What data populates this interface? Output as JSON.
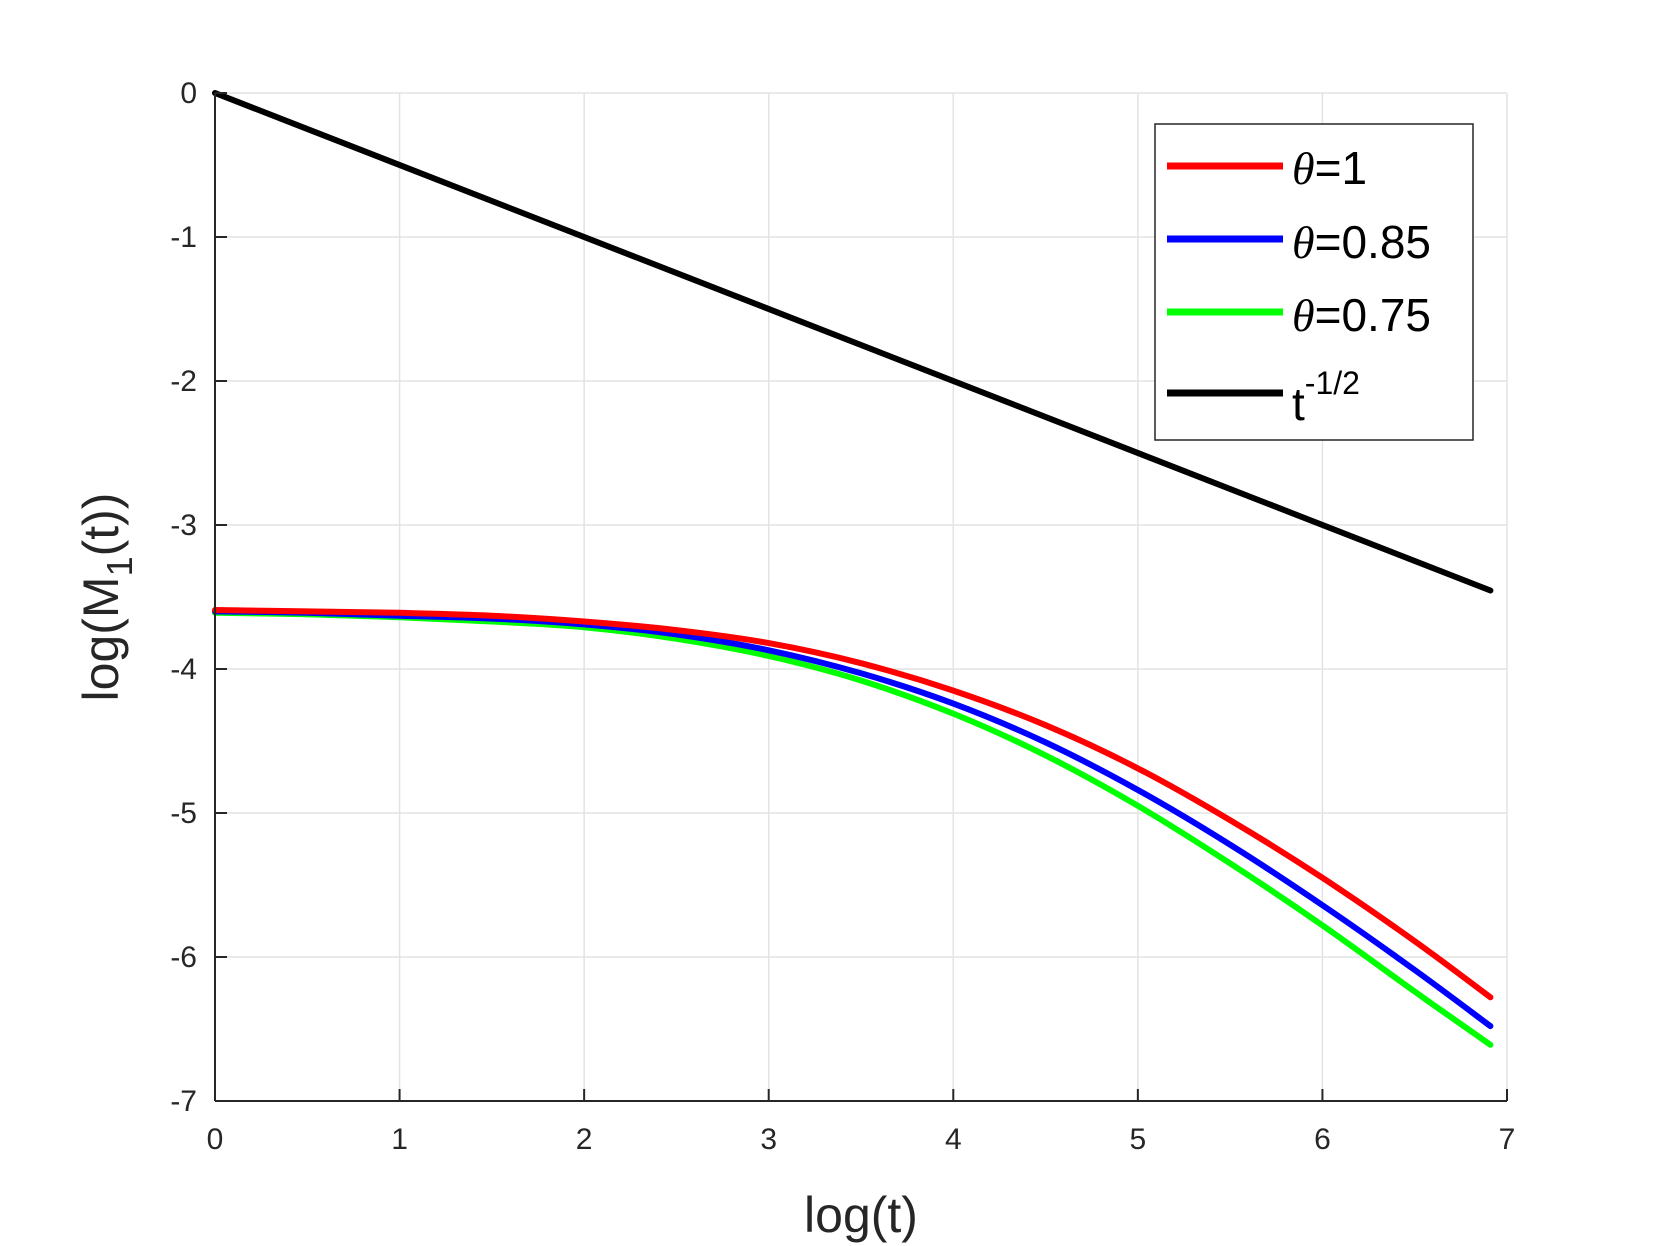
{
  "chart_data": {
    "type": "line",
    "xlabel": "log(t)",
    "ylabel": {
      "base": "log(M",
      "subscript": "1",
      "rest": "(t))"
    },
    "xlim": [
      0,
      7
    ],
    "ylim": [
      -7,
      0
    ],
    "xticks": [
      "0",
      "1",
      "2",
      "3",
      "4",
      "5",
      "6",
      "7"
    ],
    "yticks": [
      "0",
      "-1",
      "-2",
      "-3",
      "-4",
      "-5",
      "-6",
      "-7"
    ],
    "grid": true,
    "legend_position": "top-right",
    "series": [
      {
        "name": "θ=1",
        "name_symbol": "θ",
        "name_rest": "=1",
        "color": "#ff0000",
        "x": [
          0,
          0.5,
          1,
          1.5,
          2,
          2.5,
          3,
          3.5,
          4,
          4.5,
          5,
          5.5,
          6,
          6.5,
          6.91
        ],
        "y": [
          -3.59,
          -3.6,
          -3.61,
          -3.63,
          -3.67,
          -3.73,
          -3.82,
          -3.96,
          -4.15,
          -4.39,
          -4.69,
          -5.05,
          -5.45,
          -5.89,
          -6.28
        ]
      },
      {
        "name": "θ=0.85",
        "name_symbol": "θ",
        "name_rest": "=0.85",
        "color": "#0000ff",
        "x": [
          0,
          0.5,
          1,
          1.5,
          2,
          2.5,
          3,
          3.5,
          4,
          4.5,
          5,
          5.5,
          6,
          6.5,
          6.91
        ],
        "y": [
          -3.6,
          -3.61,
          -3.63,
          -3.65,
          -3.69,
          -3.76,
          -3.87,
          -4.03,
          -4.24,
          -4.51,
          -4.84,
          -5.22,
          -5.64,
          -6.09,
          -6.48
        ]
      },
      {
        "name": "θ=0.75",
        "name_symbol": "θ",
        "name_rest": "=0.75",
        "color": "#00ff00",
        "x": [
          0,
          0.5,
          1,
          1.5,
          2,
          2.5,
          3,
          3.5,
          4,
          4.5,
          5,
          5.5,
          6,
          6.5,
          6.91
        ],
        "y": [
          -3.61,
          -3.62,
          -3.64,
          -3.67,
          -3.71,
          -3.79,
          -3.91,
          -4.08,
          -4.31,
          -4.6,
          -4.95,
          -5.35,
          -5.78,
          -6.24,
          -6.61
        ]
      },
      {
        "name": "t-1/2",
        "name_base": "t",
        "name_sup": "-1/2",
        "color": "#000000",
        "x": [
          0,
          6.91
        ],
        "y": [
          0,
          -3.455
        ]
      }
    ]
  }
}
